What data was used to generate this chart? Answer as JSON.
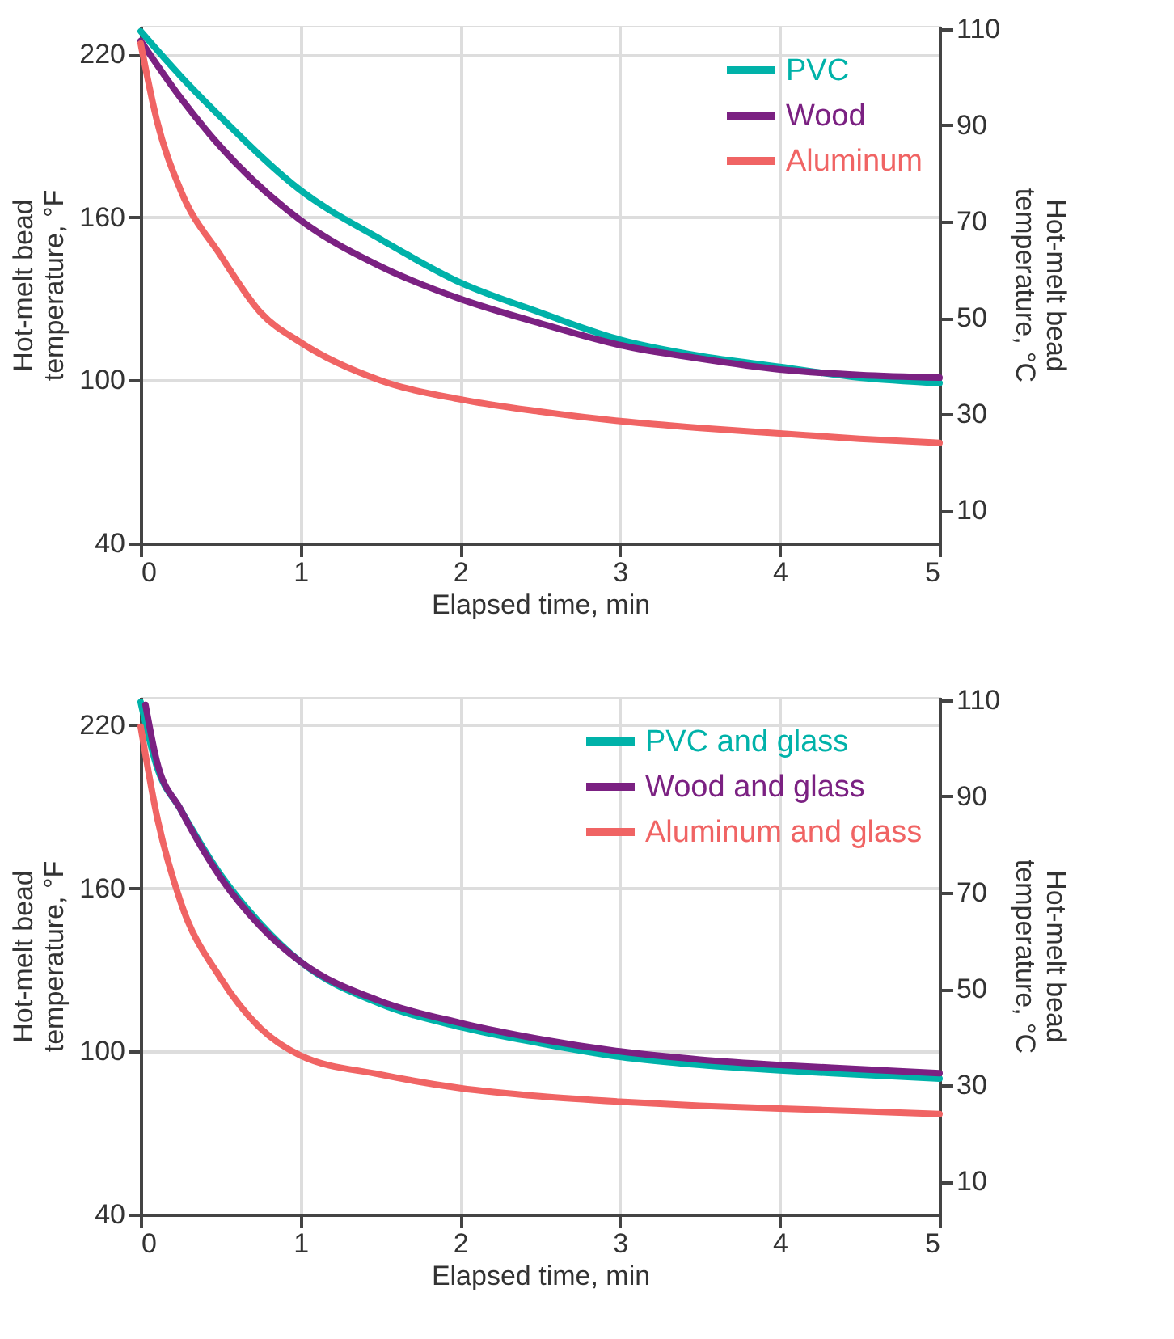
{
  "chart_data": [
    {
      "type": "line",
      "xlabel": "Elapsed time, min",
      "ylabel": "Hot-melt bead temperature, °F",
      "y2label": "Hot-melt bead temperature, °C",
      "xlim": [
        0,
        5
      ],
      "xticks": [
        0,
        1,
        2,
        3,
        4,
        5
      ],
      "ylim": [
        40,
        230.5
      ],
      "yticks": [
        40,
        100,
        160,
        220
      ],
      "y2lim": [
        3.2,
        110.6
      ],
      "y2ticks": [
        10,
        30,
        50,
        70,
        90,
        110
      ],
      "grid": true,
      "legend": "top right",
      "line_style": "solid",
      "marker": "none",
      "series": [
        {
          "name": "PVC",
          "color": "#00b2a9",
          "x": [
            0,
            0.25,
            0.5,
            1,
            1.5,
            2,
            2.5,
            3,
            3.5,
            4,
            4.5,
            5
          ],
          "values": [
            228.5,
            212,
            197,
            170,
            152,
            136,
            125,
            115,
            109,
            105,
            101,
            99
          ]
        },
        {
          "name": "Wood",
          "color": "#7b2182",
          "x": [
            0,
            0.25,
            0.5,
            1,
            1.5,
            2,
            2.5,
            3,
            3.5,
            4,
            4.5,
            5
          ],
          "values": [
            225,
            204,
            186,
            159,
            142,
            130,
            121,
            113,
            108,
            104,
            102,
            101
          ]
        },
        {
          "name": "Aluminum",
          "color": "#f06464",
          "x": [
            0,
            0.1,
            0.25,
            0.5,
            0.75,
            1,
            1.5,
            2,
            2.5,
            3,
            3.5,
            4,
            4.5,
            5
          ],
          "values": [
            224,
            196,
            170,
            146,
            125,
            114,
            100,
            93,
            88.5,
            85,
            82.5,
            80.5,
            78.5,
            77
          ]
        }
      ]
    },
    {
      "type": "line",
      "xlabel": "Elapsed time, min",
      "ylabel": "Hot-melt bead temperature, °F",
      "y2label": "Hot-melt bead temperature, °C",
      "xlim": [
        0,
        5
      ],
      "xticks": [
        0,
        1,
        2,
        3,
        4,
        5
      ],
      "ylim": [
        40,
        230.4
      ],
      "yticks": [
        40,
        100,
        160,
        220
      ],
      "y2lim": [
        3.2,
        110.6
      ],
      "y2ticks": [
        10,
        30,
        50,
        70,
        90,
        110
      ],
      "grid": true,
      "legend": "top right",
      "line_style": "solid",
      "marker": "none",
      "series": [
        {
          "name": "PVC and glass",
          "color": "#00b2a9",
          "x": [
            0,
            0.1,
            0.25,
            0.5,
            0.75,
            1,
            1.5,
            2,
            2.5,
            3,
            3.5,
            4,
            4.5,
            5
          ],
          "values": [
            228.5,
            205,
            189,
            165,
            147,
            133,
            117.5,
            109,
            103,
            98,
            95,
            93,
            91.5,
            90
          ]
        },
        {
          "name": "Wood and glass",
          "color": "#7b2182",
          "x": [
            0.03,
            0.1,
            0.25,
            0.5,
            0.75,
            1,
            1.5,
            2,
            2.5,
            3,
            3.5,
            4,
            4.5,
            5
          ],
          "values": [
            227.5,
            207,
            189,
            164,
            146,
            133,
            118.5,
            110.5,
            104.5,
            100,
            97,
            95,
            93.5,
            92
          ]
        },
        {
          "name": "Aluminum and glass",
          "color": "#f06464",
          "x": [
            0,
            0.1,
            0.25,
            0.5,
            0.75,
            1,
            1.5,
            2,
            2.5,
            3,
            3.5,
            4,
            4.5,
            5
          ],
          "values": [
            219.5,
            187,
            155,
            127,
            108.5,
            98.5,
            91.5,
            86.5,
            83.5,
            81.5,
            80,
            79,
            78,
            77
          ]
        }
      ]
    }
  ]
}
